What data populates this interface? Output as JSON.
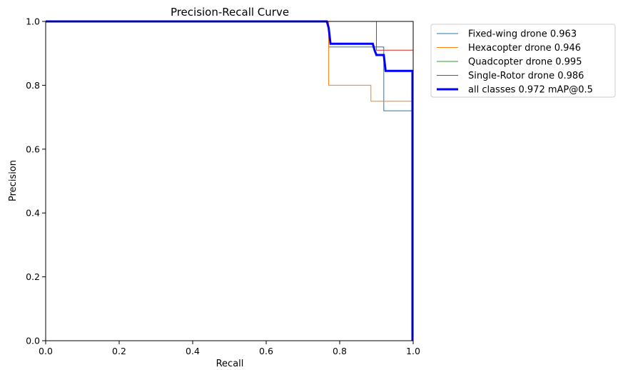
{
  "chart_data": {
    "type": "line",
    "title": "Precision-Recall Curve",
    "xlabel": "Recall",
    "ylabel": "Precision",
    "xlim": [
      0.0,
      1.0
    ],
    "ylim": [
      0.0,
      1.0
    ],
    "xticks": [
      "0.0",
      "0.2",
      "0.4",
      "0.6",
      "0.8",
      "1.0"
    ],
    "yticks": [
      "0.0",
      "0.2",
      "0.4",
      "0.6",
      "0.8",
      "1.0"
    ],
    "grid": false,
    "legend_position": "outside-top-right",
    "series": [
      {
        "name": "Fixed-wing drone 0.963",
        "color": "#1f77b4",
        "points": [
          [
            0,
            1.0
          ],
          [
            0.77,
            1.0
          ],
          [
            0.77,
            0.92
          ],
          [
            0.89,
            0.92
          ],
          [
            0.92,
            0.92
          ],
          [
            0.92,
            0.72
          ],
          [
            1.0,
            0.72
          ],
          [
            1.0,
            0.0
          ]
        ]
      },
      {
        "name": "Hexacopter drone 0.946",
        "color": "#ff7f0e",
        "points": [
          [
            0,
            1.0
          ],
          [
            0.77,
            1.0
          ],
          [
            0.77,
            0.8
          ],
          [
            0.885,
            0.8
          ],
          [
            0.885,
            0.75
          ],
          [
            1.0,
            0.75
          ],
          [
            1.0,
            0.0
          ]
        ]
      },
      {
        "name": "Quadcopter drone 0.995",
        "color": "#2ca02c",
        "points": [
          [
            0,
            1.0
          ],
          [
            1.0,
            1.0
          ],
          [
            1.0,
            0.0
          ]
        ]
      },
      {
        "name": "Single-Rotor drone 0.986",
        "color": "#d62728",
        "points": [
          [
            0,
            1.0
          ],
          [
            0.9,
            1.0
          ],
          [
            0.9,
            0.91
          ],
          [
            1.0,
            0.91
          ],
          [
            1.0,
            0.0
          ]
        ]
      },
      {
        "name": "all classes 0.972 mAP@0.5",
        "color": "#0000ff",
        "bold": true,
        "points": [
          [
            0,
            1.0
          ],
          [
            0.765,
            1.0
          ],
          [
            0.77,
            0.98
          ],
          [
            0.775,
            0.93
          ],
          [
            0.89,
            0.93
          ],
          [
            0.895,
            0.91
          ],
          [
            0.9,
            0.895
          ],
          [
            0.92,
            0.895
          ],
          [
            0.925,
            0.845
          ],
          [
            0.998,
            0.845
          ],
          [
            0.998,
            0.0
          ]
        ]
      }
    ]
  }
}
